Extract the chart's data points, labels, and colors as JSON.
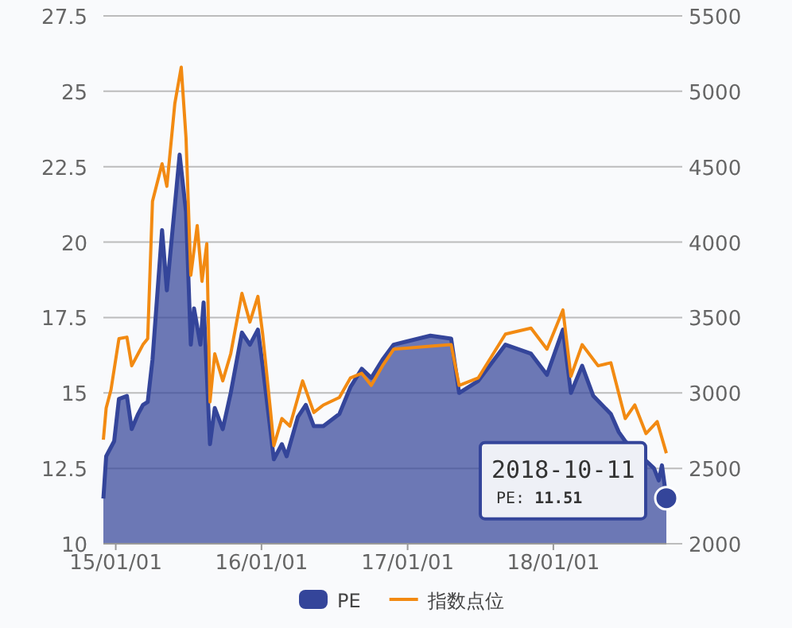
{
  "chart_data": {
    "type": "area",
    "xlim": [
      "2014-12-01",
      "2018-10-11"
    ],
    "xticks": [
      {
        "value": "2015-01-01",
        "label": "15/01/01"
      },
      {
        "value": "2016-01-01",
        "label": "16/01/01"
      },
      {
        "value": "2017-01-01",
        "label": "17/01/01"
      },
      {
        "value": "2018-01-01",
        "label": "18/01/01"
      }
    ],
    "ylim": [
      10,
      27.5
    ],
    "yticks": [
      10,
      12.5,
      15,
      17.5,
      20,
      22.5,
      25,
      27.5
    ],
    "y2lim": [
      2000,
      5500
    ],
    "y2ticks": [
      2000,
      2500,
      3000,
      3500,
      4000,
      4500,
      5000,
      5500
    ],
    "grid": "y",
    "legend": "bottom",
    "series": [
      {
        "name": "PE",
        "color": "#34459a",
        "x": [
          "2014-12-01",
          "2014-12-08",
          "2014-12-28",
          "2015-01-09",
          "2015-01-29",
          "2015-02-10",
          "2015-02-26",
          "2015-03-10",
          "2015-03-22",
          "2015-04-03",
          "2015-04-27",
          "2015-05-09",
          "2015-06-10",
          "2015-06-26",
          "2015-07-08",
          "2015-07-16",
          "2015-08-01",
          "2015-08-09",
          "2015-08-25",
          "2015-09-06",
          "2015-09-26",
          "2015-10-16",
          "2015-11-13",
          "2015-12-03",
          "2015-12-23",
          "2016-01-04",
          "2016-02-01",
          "2016-02-21",
          "2016-03-04",
          "2016-04-01",
          "2016-04-21",
          "2016-05-11",
          "2016-06-04",
          "2016-07-14",
          "2016-08-11",
          "2016-09-08",
          "2016-10-02",
          "2016-10-30",
          "2016-11-27",
          "2017-02-27",
          "2017-04-20",
          "2017-05-10",
          "2017-06-27",
          "2017-09-03",
          "2017-11-06",
          "2017-12-16",
          "2018-01-25",
          "2018-02-14",
          "2018-03-14",
          "2018-04-11",
          "2018-05-25",
          "2018-06-14",
          "2018-06-30",
          "2018-09-10",
          "2018-09-22",
          "2018-09-30",
          "2018-10-11"
        ],
        "values": [
          11.5,
          12.9,
          13.4,
          14.8,
          14.9,
          13.8,
          14.3,
          14.6,
          14.7,
          16.1,
          20.4,
          18.4,
          22.9,
          21.0,
          16.6,
          17.8,
          16.6,
          18.0,
          13.3,
          14.5,
          13.8,
          15.0,
          17.0,
          16.6,
          17.1,
          15.9,
          12.8,
          13.3,
          12.9,
          14.2,
          14.6,
          13.9,
          13.9,
          14.3,
          15.2,
          15.8,
          15.5,
          16.1,
          16.6,
          16.9,
          16.8,
          15.0,
          15.4,
          16.6,
          16.3,
          15.6,
          17.1,
          15.0,
          15.9,
          14.9,
          14.3,
          13.7,
          13.4,
          12.5,
          12.1,
          12.6,
          11.51
        ]
      },
      {
        "name": "指数点位",
        "type": "line",
        "axis": "y2",
        "color": "#f28a12",
        "x": [
          "2014-12-01",
          "2014-12-08",
          "2014-12-20",
          "2015-01-09",
          "2015-01-29",
          "2015-02-10",
          "2015-02-26",
          "2015-03-10",
          "2015-03-22",
          "2015-04-03",
          "2015-04-27",
          "2015-05-09",
          "2015-05-29",
          "2015-06-14",
          "2015-06-26",
          "2015-07-08",
          "2015-07-24",
          "2015-08-05",
          "2015-08-17",
          "2015-08-25",
          "2015-09-06",
          "2015-09-26",
          "2015-10-16",
          "2015-11-13",
          "2015-12-03",
          "2015-12-23",
          "2016-01-04",
          "2016-01-24",
          "2016-02-01",
          "2016-02-21",
          "2016-03-12",
          "2016-04-13",
          "2016-05-11",
          "2016-06-04",
          "2016-07-14",
          "2016-08-11",
          "2016-09-08",
          "2016-10-02",
          "2016-10-30",
          "2016-11-27",
          "2017-02-27",
          "2017-04-20",
          "2017-05-10",
          "2017-06-27",
          "2017-09-03",
          "2017-11-06",
          "2017-12-16",
          "2018-01-25",
          "2018-02-14",
          "2018-03-14",
          "2018-04-23",
          "2018-05-25",
          "2018-06-30",
          "2018-07-24",
          "2018-08-21",
          "2018-09-18",
          "2018-10-11"
        ],
        "values": [
          2690,
          2900,
          3020,
          3360,
          3370,
          3180,
          3260,
          3320,
          3360,
          4270,
          4520,
          4370,
          4920,
          5160,
          4690,
          3780,
          4110,
          3740,
          3990,
          2940,
          3260,
          3080,
          3260,
          3660,
          3470,
          3640,
          3390,
          2870,
          2650,
          2830,
          2780,
          3080,
          2870,
          2920,
          2970,
          3100,
          3130,
          3050,
          3180,
          3290,
          3310,
          3320,
          3050,
          3100,
          3390,
          3430,
          3290,
          3550,
          3110,
          3320,
          3180,
          3200,
          2830,
          2920,
          2730,
          2810,
          2600
        ]
      }
    ],
    "annotations": [
      {
        "text": "2018-10-11",
        "x": "2018-10-11",
        "y": 11.51
      },
      "PE: **11.51**"
    ]
  }
}
